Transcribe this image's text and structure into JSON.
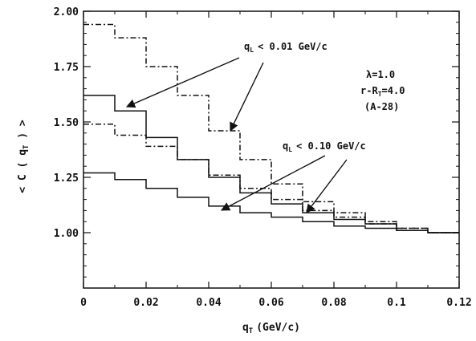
{
  "chart_data": {
    "type": "line",
    "step": true,
    "title": "",
    "xlabel": "q_T (GeV/c)",
    "ylabel": "< C ( q_T ) >",
    "xlim": [
      0,
      0.12
    ],
    "ylim": [
      0.75,
      2.0
    ],
    "x_ticks": [
      "0",
      "0.02",
      "0.04",
      "0.06",
      "0.08",
      "0.1",
      "0.12"
    ],
    "y_ticks": [
      "1.00",
      "1.25",
      "1.50",
      "1.75",
      "2.00"
    ],
    "bin_edges": [
      0,
      0.01,
      0.02,
      0.03,
      0.04,
      0.05,
      0.06,
      0.07,
      0.08,
      0.09,
      0.1,
      0.11,
      0.12
    ],
    "series": [
      {
        "style": "dash-dot",
        "values": [
          1.94,
          1.88,
          1.75,
          1.62,
          1.46,
          1.33,
          1.22,
          1.14,
          1.09,
          1.05,
          1.02,
          1.0
        ]
      },
      {
        "style": "solid",
        "values": [
          1.62,
          1.55,
          1.43,
          1.33,
          1.25,
          1.18,
          1.13,
          1.09,
          1.06,
          1.04,
          1.01,
          1.0
        ]
      },
      {
        "style": "dash-dot",
        "values": [
          1.49,
          1.44,
          1.39,
          1.33,
          1.26,
          1.2,
          1.15,
          1.1,
          1.07,
          1.04,
          1.02,
          1.0
        ]
      },
      {
        "style": "solid",
        "values": [
          1.27,
          1.24,
          1.2,
          1.16,
          1.12,
          1.09,
          1.07,
          1.05,
          1.03,
          1.02,
          1.01,
          1.0
        ]
      }
    ],
    "annotations": {
      "label_01": "q_L < 0.01 GeV/c",
      "label_10": "q_L < 0.10 GeV/c",
      "params": [
        "λ=1.0",
        "r-R_T=4.0",
        "(A-28)"
      ]
    }
  }
}
